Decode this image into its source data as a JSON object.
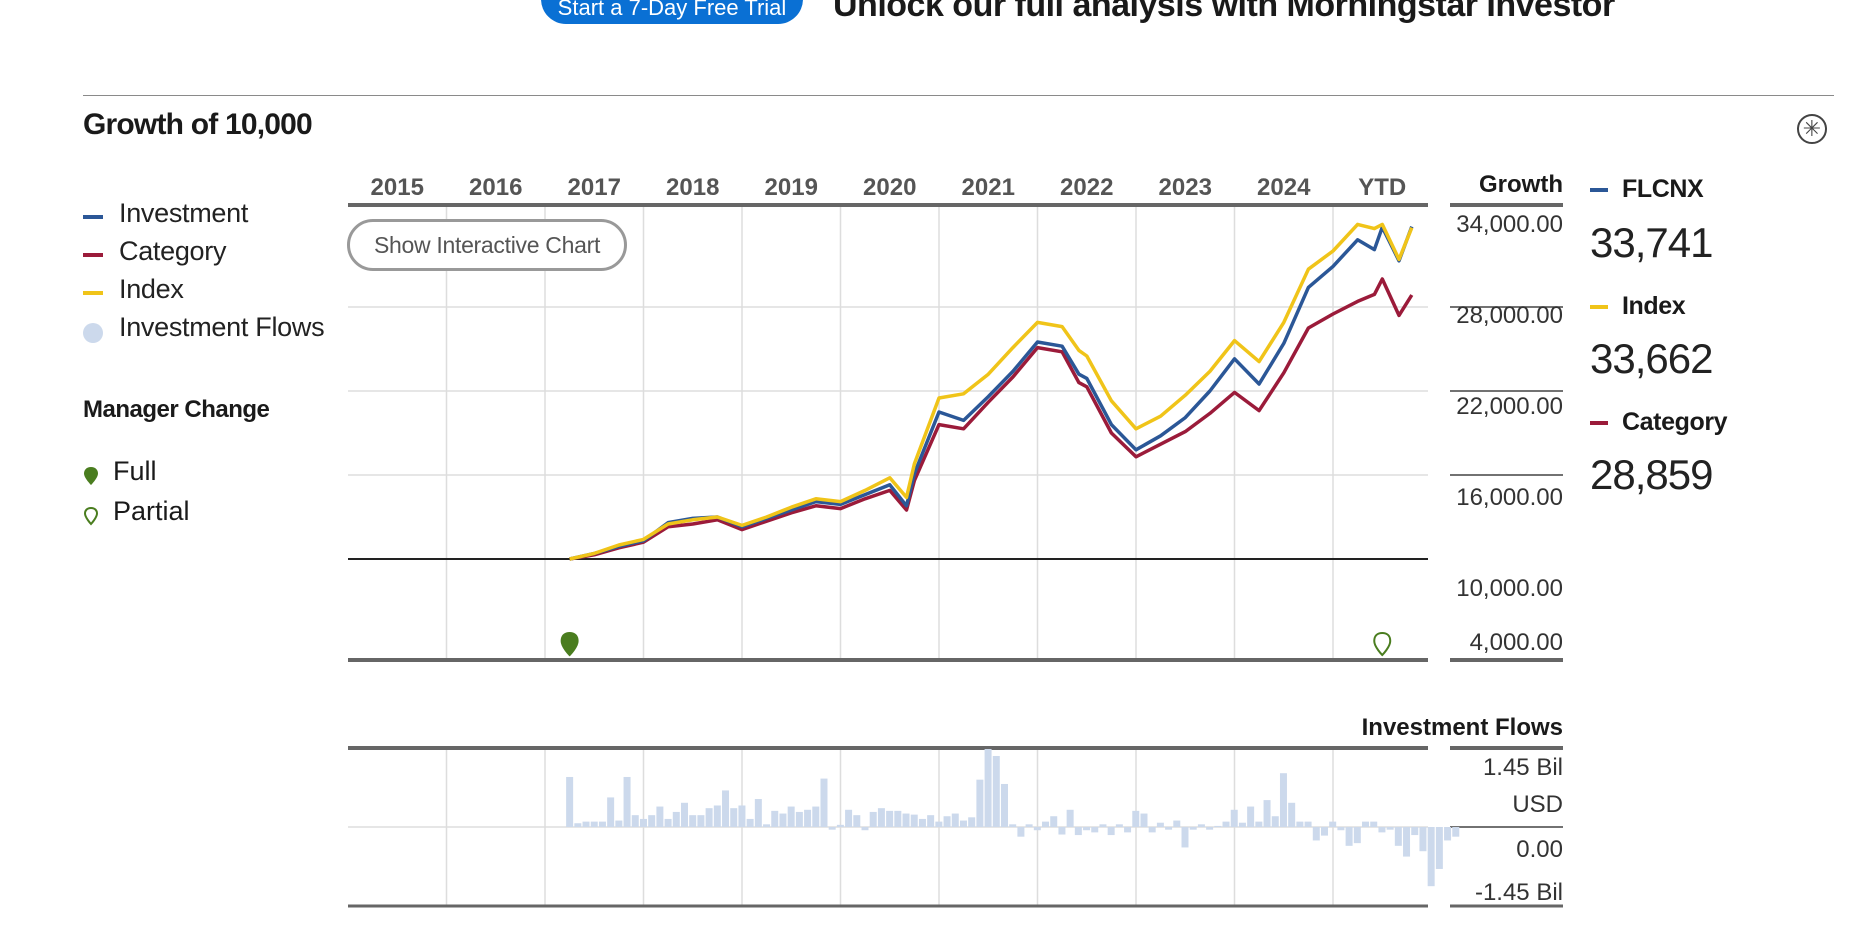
{
  "promo": {
    "button_label": "Start a 7-Day Free Trial",
    "headline": "Unlock our full analysis with Morningstar Investor"
  },
  "section": {
    "title": "Growth of 10,000",
    "expand_icon": "expand-icon"
  },
  "legend": {
    "items": [
      {
        "label": "Investment",
        "color": "#2b5797",
        "kind": "line"
      },
      {
        "label": "Category",
        "color": "#9b1b3a",
        "kind": "line"
      },
      {
        "label": "Index",
        "color": "#f0c419",
        "kind": "line"
      },
      {
        "label": "Investment Flows",
        "color": "#ccd9ec",
        "kind": "dot"
      }
    ],
    "manager_change_title": "Manager Change",
    "manager_full": "Full",
    "manager_partial": "Partial"
  },
  "controls": {
    "show_chart_label": "Show Interactive Chart"
  },
  "summary": {
    "items": [
      {
        "name": "FLCNX",
        "value": "33,741",
        "color": "#2b5797"
      },
      {
        "name": "Index",
        "value": "33,662",
        "color": "#f0c419"
      },
      {
        "name": "Category",
        "value": "28,859",
        "color": "#9b1b3a"
      }
    ]
  },
  "chart_data": [
    {
      "type": "line",
      "title": "Growth of 10,000",
      "value_header": "Growth",
      "year_labels": [
        "2015",
        "2016",
        "2017",
        "2018",
        "2019",
        "2020",
        "2021",
        "2022",
        "2023",
        "2024",
        "YTD"
      ],
      "y_ticks": [
        "34,000.00",
        "28,000.00",
        "22,000.00",
        "16,000.00",
        "10,000.00",
        "4,000.00"
      ],
      "ylim": [
        4000,
        34000
      ],
      "x": [
        2016.75,
        2017.0,
        2017.25,
        2017.5,
        2017.75,
        2018.0,
        2018.25,
        2018.5,
        2018.75,
        2019.0,
        2019.25,
        2019.5,
        2019.75,
        2020.0,
        2020.17,
        2020.25,
        2020.5,
        2020.75,
        2021.0,
        2021.25,
        2021.5,
        2021.75,
        2021.92,
        2022.0,
        2022.25,
        2022.5,
        2022.75,
        2023.0,
        2023.25,
        2023.5,
        2023.75,
        2024.0,
        2024.25,
        2024.5,
        2024.75,
        2024.92,
        2025.0,
        2025.17,
        2025.3
      ],
      "series": [
        {
          "name": "Investment",
          "color": "#2b5797",
          "values": [
            10000,
            10400,
            10900,
            11300,
            12600,
            12900,
            13000,
            12300,
            12900,
            13500,
            14100,
            13900,
            14600,
            15300,
            13800,
            16100,
            20500,
            19900,
            21600,
            23400,
            25500,
            25200,
            23200,
            22900,
            19600,
            17800,
            18800,
            20100,
            22000,
            24300,
            22500,
            25400,
            29400,
            30900,
            32800,
            32100,
            33700,
            31300,
            33741
          ]
        },
        {
          "name": "Index",
          "color": "#f0c419",
          "values": [
            10000,
            10400,
            11000,
            11400,
            12500,
            12800,
            13000,
            12400,
            13000,
            13700,
            14300,
            14100,
            14900,
            15800,
            14400,
            16800,
            21500,
            21800,
            23200,
            25100,
            26900,
            26600,
            24900,
            24500,
            21300,
            19300,
            20200,
            21700,
            23400,
            25600,
            24100,
            26900,
            30700,
            32000,
            33900,
            33600,
            33900,
            31400,
            33662
          ]
        },
        {
          "name": "Category",
          "color": "#9b1b3a",
          "values": [
            10000,
            10300,
            10800,
            11200,
            12300,
            12500,
            12800,
            12100,
            12700,
            13300,
            13800,
            13600,
            14300,
            14900,
            13500,
            15600,
            19600,
            19300,
            21200,
            23000,
            25100,
            24800,
            22600,
            22300,
            19000,
            17300,
            18200,
            19100,
            20400,
            21900,
            20600,
            23300,
            26500,
            27500,
            28400,
            28900,
            30000,
            27400,
            28859
          ]
        }
      ],
      "manager_changes": [
        {
          "x": 2016.75,
          "type": "Full",
          "color": "#4a7d1f"
        },
        {
          "x": 2025.0,
          "type": "Partial",
          "color": "#4a7d1f"
        }
      ]
    },
    {
      "type": "bar",
      "title": "Investment Flows",
      "y_ticks": [
        "1.45 Bil",
        "USD",
        "0.00",
        "-1.45 Bil"
      ],
      "ylim": [
        -1.45,
        1.45
      ],
      "unit": "Bil USD",
      "color": "#ccd9ec",
      "x_start": 2016.75,
      "x_step": 0.0833,
      "values": [
        0.93,
        0.07,
        0.1,
        0.1,
        0.1,
        0.55,
        0.12,
        0.93,
        0.22,
        0.15,
        0.22,
        0.38,
        0.15,
        0.28,
        0.45,
        0.22,
        0.22,
        0.35,
        0.4,
        0.68,
        0.35,
        0.4,
        0.15,
        0.52,
        0.05,
        0.3,
        0.25,
        0.38,
        0.28,
        0.32,
        0.38,
        0.9,
        -0.05,
        0.04,
        0.32,
        0.22,
        -0.06,
        0.28,
        0.35,
        0.3,
        0.3,
        0.25,
        0.23,
        0.15,
        0.22,
        0.1,
        0.2,
        0.25,
        0.12,
        0.18,
        0.88,
        1.45,
        1.32,
        0.8,
        0.05,
        -0.18,
        0.05,
        -0.06,
        0.1,
        0.2,
        -0.14,
        0.32,
        -0.15,
        -0.06,
        -0.1,
        0.05,
        -0.15,
        0.05,
        -0.1,
        0.3,
        0.25,
        -0.1,
        0.08,
        -0.05,
        0.12,
        -0.38,
        -0.05,
        0.05,
        -0.05,
        0.02,
        0.1,
        0.32,
        0.08,
        0.38,
        0.1,
        0.5,
        0.2,
        1.0,
        0.45,
        0.1,
        0.1,
        -0.25,
        -0.16,
        0.1,
        -0.06,
        -0.35,
        -0.3,
        0.1,
        0.1,
        -0.1,
        -0.05,
        -0.35,
        -0.55,
        -0.15,
        -0.45,
        -1.1,
        -0.78,
        -0.25,
        -0.18
      ]
    }
  ]
}
